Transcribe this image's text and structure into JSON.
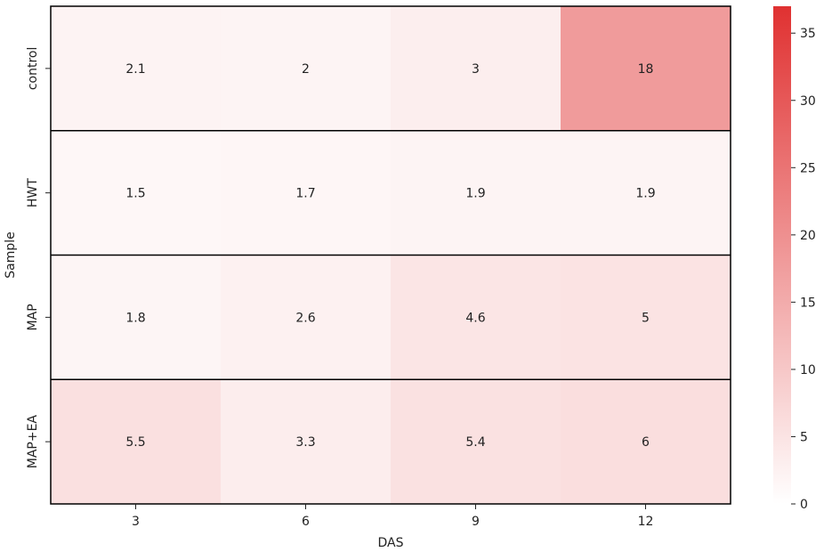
{
  "chart_data": {
    "type": "heatmap",
    "title": "",
    "xlabel": "DAS",
    "ylabel": "Sample",
    "x_categories": [
      "3",
      "6",
      "9",
      "12"
    ],
    "y_categories": [
      "control",
      "HWT",
      "MAP",
      "MAP+EA"
    ],
    "values": [
      [
        2.1,
        2,
        3,
        18
      ],
      [
        1.5,
        1.7,
        1.9,
        1.9
      ],
      [
        1.8,
        2.6,
        4.6,
        5
      ],
      [
        5.5,
        3.3,
        5.4,
        6
      ]
    ],
    "colorbar": {
      "min": 0,
      "max": 37,
      "ticks": [
        0,
        5,
        10,
        15,
        20,
        25,
        30,
        35
      ],
      "color_low": "#ffffff",
      "color_high": "#e03131"
    },
    "row_separators": true
  }
}
